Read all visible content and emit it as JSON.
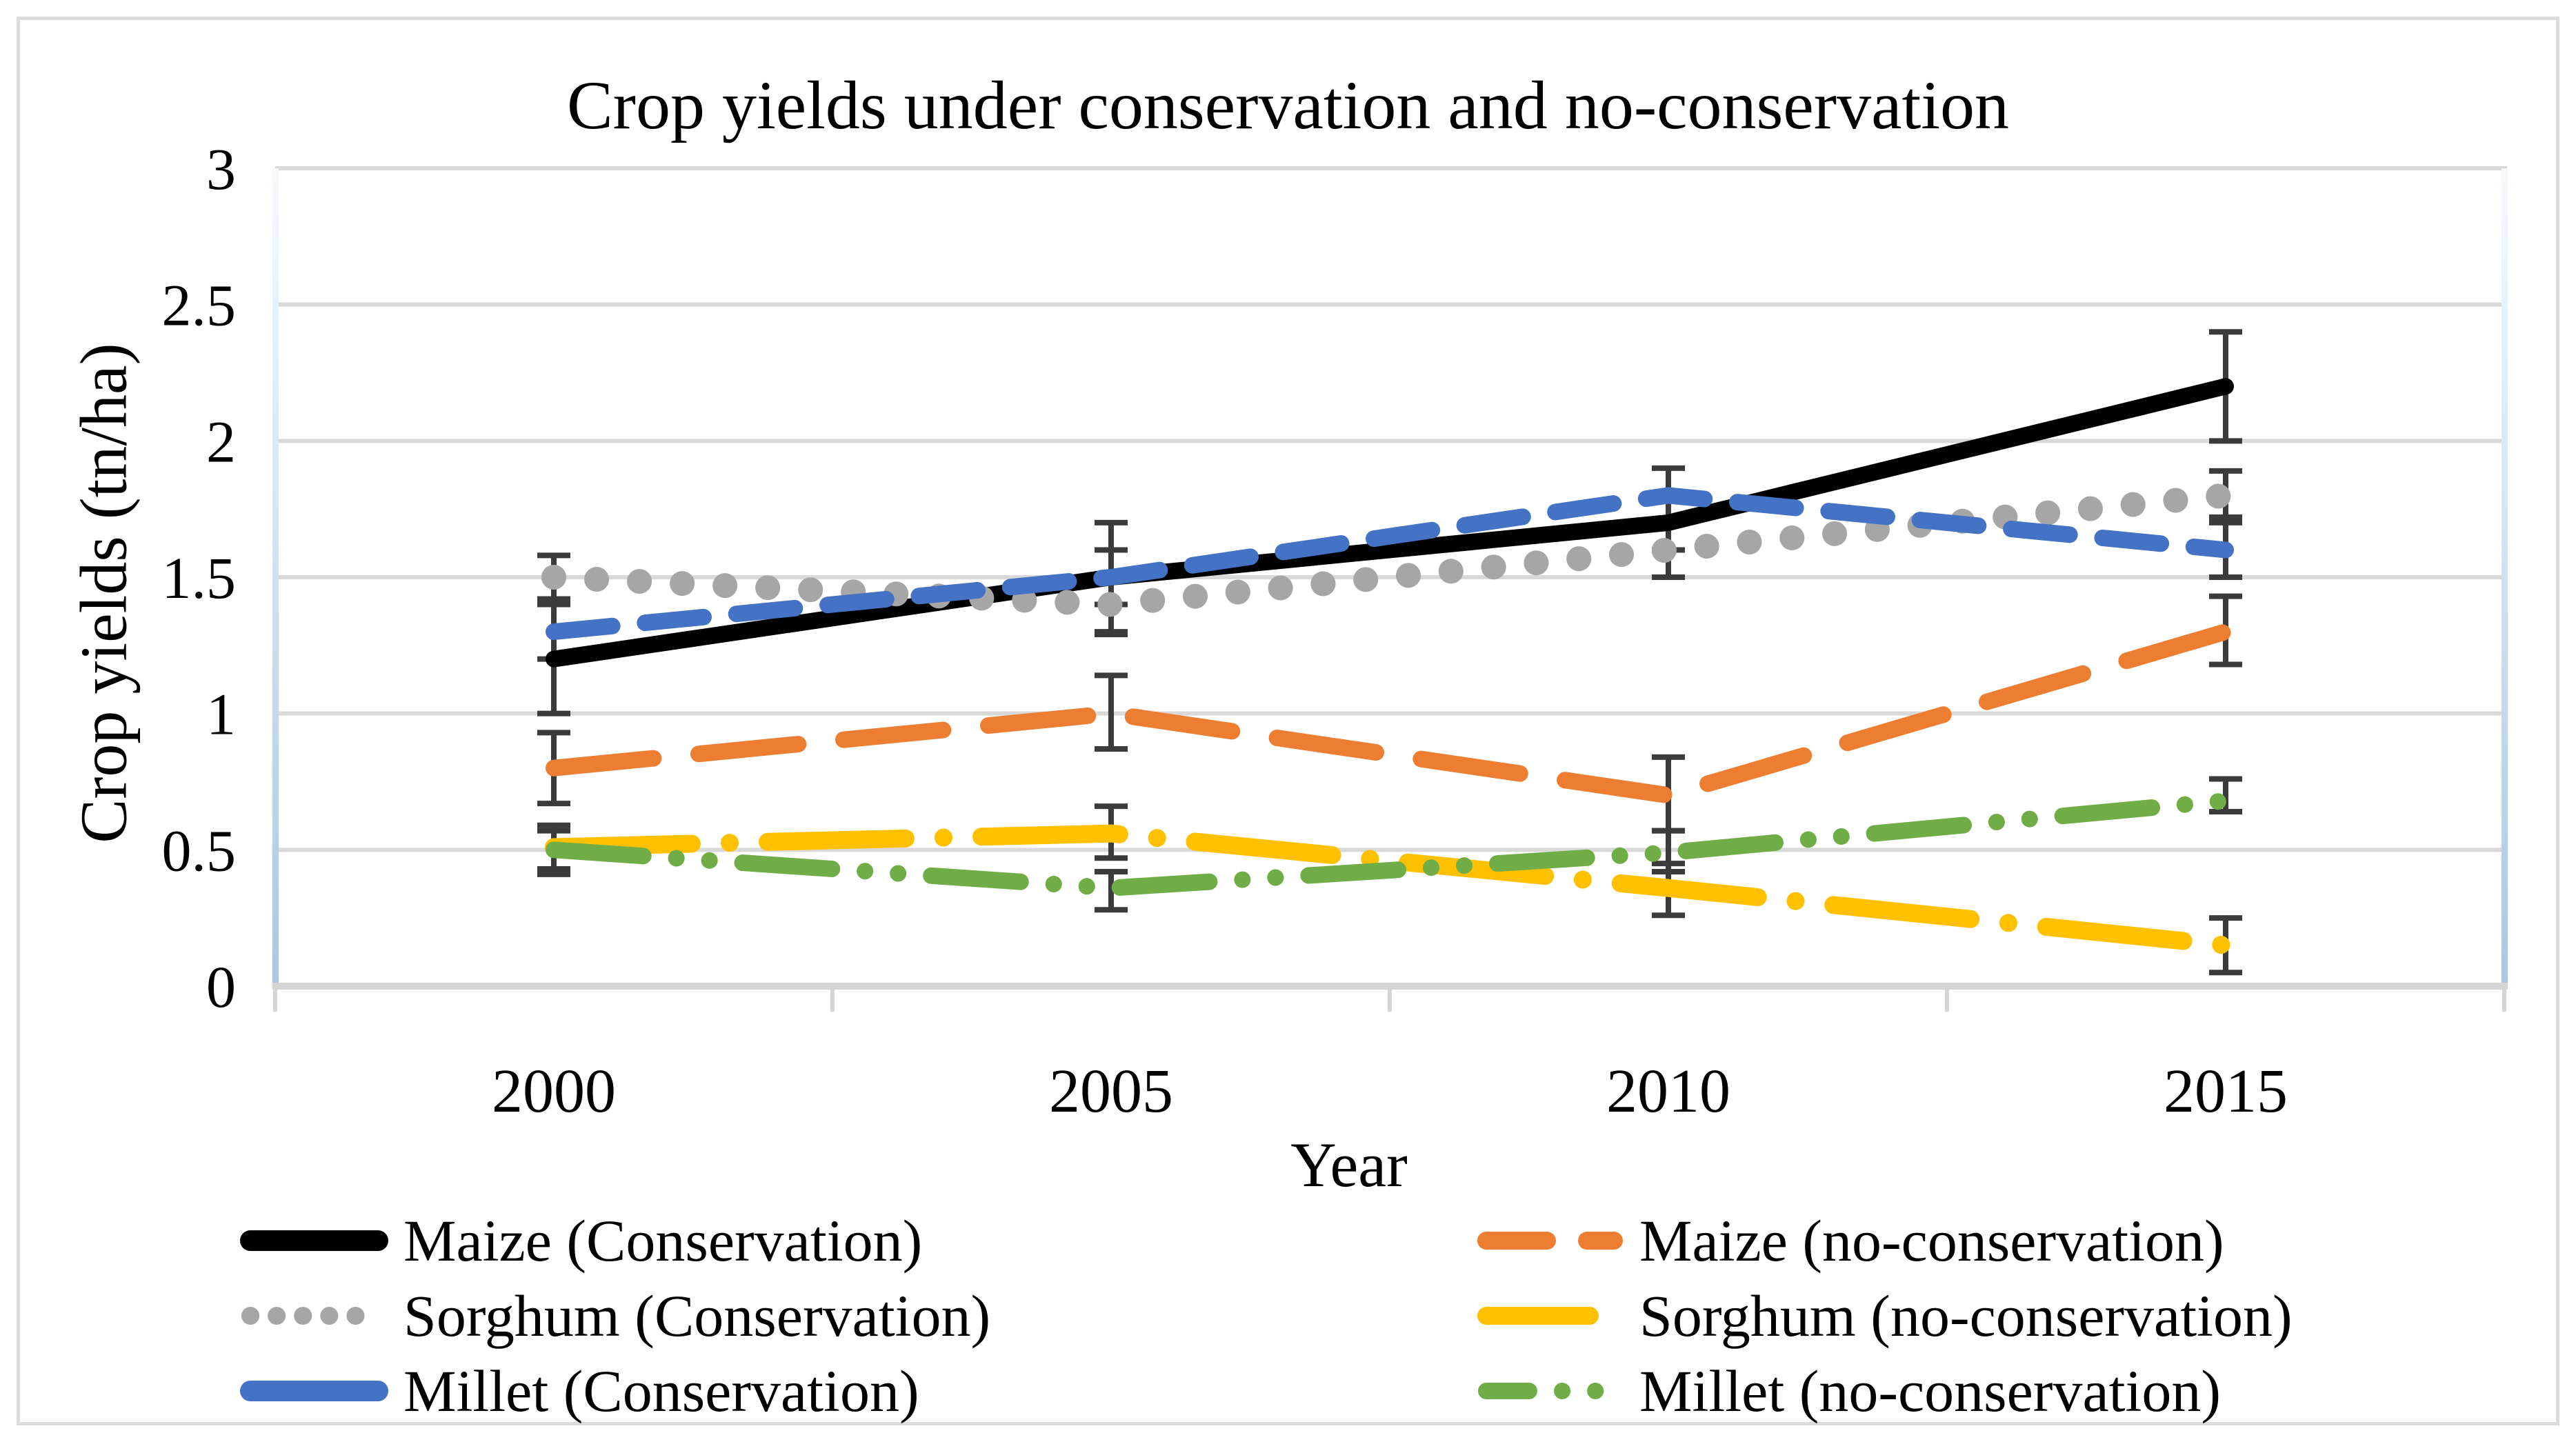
{
  "figure": {
    "title": "Crop yields under conservation and no-conservation"
  },
  "chart_data": {
    "type": "line",
    "title": "Crop yields under conservation and no-conservation",
    "xlabel": "Year",
    "ylabel": "Crop yields (tn/ha)",
    "categories": [
      "2000",
      "2005",
      "2010",
      "2015"
    ],
    "ylim": [
      0,
      3
    ],
    "yticks": [
      0,
      0.5,
      1,
      1.5,
      2,
      2.5,
      3
    ],
    "grid": true,
    "legend_position": "bottom-two-columns",
    "error_bars": true,
    "colors": {
      "gridline": "#D9D9D9",
      "axis_line": "#D5D5D5",
      "error_bar": "#3B3B3B",
      "plot_border_top": "#F6FAFD",
      "plot_border_bottom": "#A6C9E8",
      "frame": "#DCDCDC"
    },
    "series": [
      {
        "name": "Maize (Conservation)",
        "color": "#000000",
        "dash": "solid",
        "legend_column": "left",
        "values": [
          1.2,
          1.5,
          1.7,
          2.2
        ],
        "err_low": [
          1.0,
          1.4,
          1.6,
          2.0
        ],
        "err_high": [
          1.42,
          1.6,
          1.8,
          2.4
        ]
      },
      {
        "name": "Maize (no-conservation)",
        "color": "#ED7D31",
        "dash": "dash",
        "legend_column": "right",
        "values": [
          0.8,
          1.0,
          0.7,
          1.3
        ],
        "err_low": [
          0.67,
          0.87,
          0.57,
          1.18
        ],
        "err_high": [
          0.93,
          1.14,
          0.84,
          1.43
        ]
      },
      {
        "name": "Sorghum (Conservation)",
        "color": "#A6A6A6",
        "dash": "dot",
        "legend_column": "left",
        "values": [
          1.5,
          1.4,
          1.6,
          1.8
        ],
        "err_low": [
          1.42,
          1.29,
          1.5,
          1.72
        ],
        "err_high": [
          1.58,
          1.51,
          1.7,
          1.89
        ]
      },
      {
        "name": "Sorghum (no-conservation)",
        "color": "#FFC000",
        "dash": "long-dash-dot",
        "legend_column": "right",
        "values": [
          0.51,
          0.56,
          0.36,
          0.15
        ],
        "err_low": [
          0.43,
          0.47,
          0.26,
          0.05
        ],
        "err_high": [
          0.59,
          0.66,
          0.45,
          0.25
        ]
      },
      {
        "name": "Millet (Conservation)",
        "color": "#4472C4",
        "dash": "long-dash",
        "legend_column": "left",
        "values": [
          1.3,
          1.5,
          1.8,
          1.6
        ],
        "err_low": [
          1.2,
          1.3,
          1.7,
          1.5
        ],
        "err_high": [
          1.4,
          1.7,
          1.9,
          1.7
        ]
      },
      {
        "name": "Millet (no-conservation)",
        "color": "#70AD47",
        "dash": "dash-dot-dot",
        "legend_column": "right",
        "values": [
          0.5,
          0.36,
          0.49,
          0.68
        ],
        "err_low": [
          0.41,
          0.28,
          0.42,
          0.64
        ],
        "err_high": [
          0.57,
          0.42,
          0.57,
          0.76
        ]
      }
    ]
  }
}
